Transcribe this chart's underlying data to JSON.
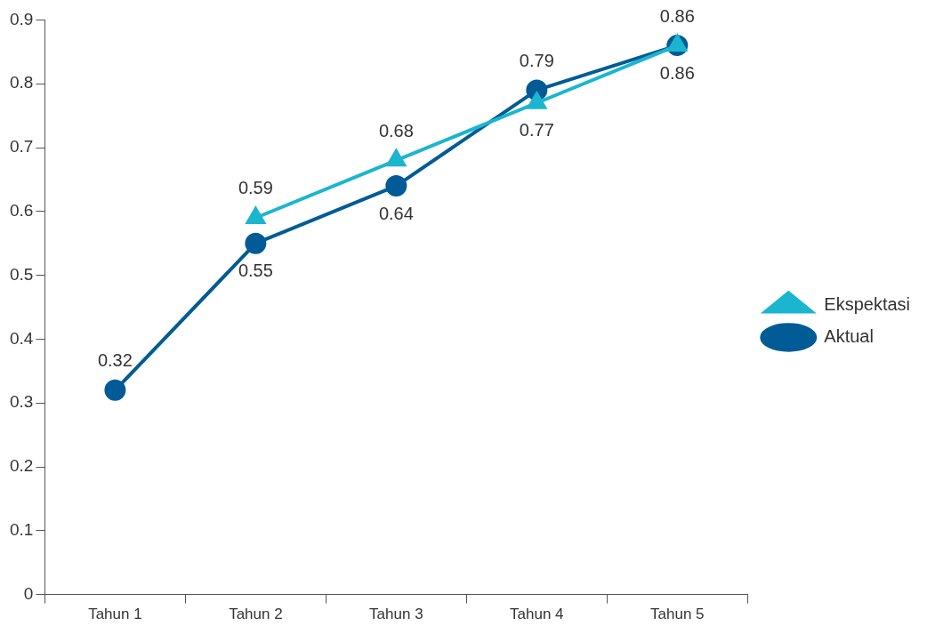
{
  "chart_data": {
    "type": "line",
    "categories": [
      "Tahun 1",
      "Tahun 2",
      "Tahun 3",
      "Tahun 4",
      "Tahun 5"
    ],
    "series": [
      {
        "name": "Ekspektasi",
        "color": "#1cb5cf",
        "marker": "triangle",
        "values": [
          null,
          0.59,
          0.68,
          0.77,
          0.86
        ]
      },
      {
        "name": "Aktual",
        "color": "#005b96",
        "marker": "circle",
        "values": [
          0.32,
          0.55,
          0.64,
          0.79,
          0.86
        ]
      }
    ],
    "ylim": [
      0,
      0.9
    ],
    "yticks": [
      0,
      0.1,
      0.2,
      0.3,
      0.4,
      0.5,
      0.6,
      0.7,
      0.8,
      0.9
    ],
    "grid": false,
    "legend": "right",
    "data_labels": true,
    "line_style": "solid"
  }
}
